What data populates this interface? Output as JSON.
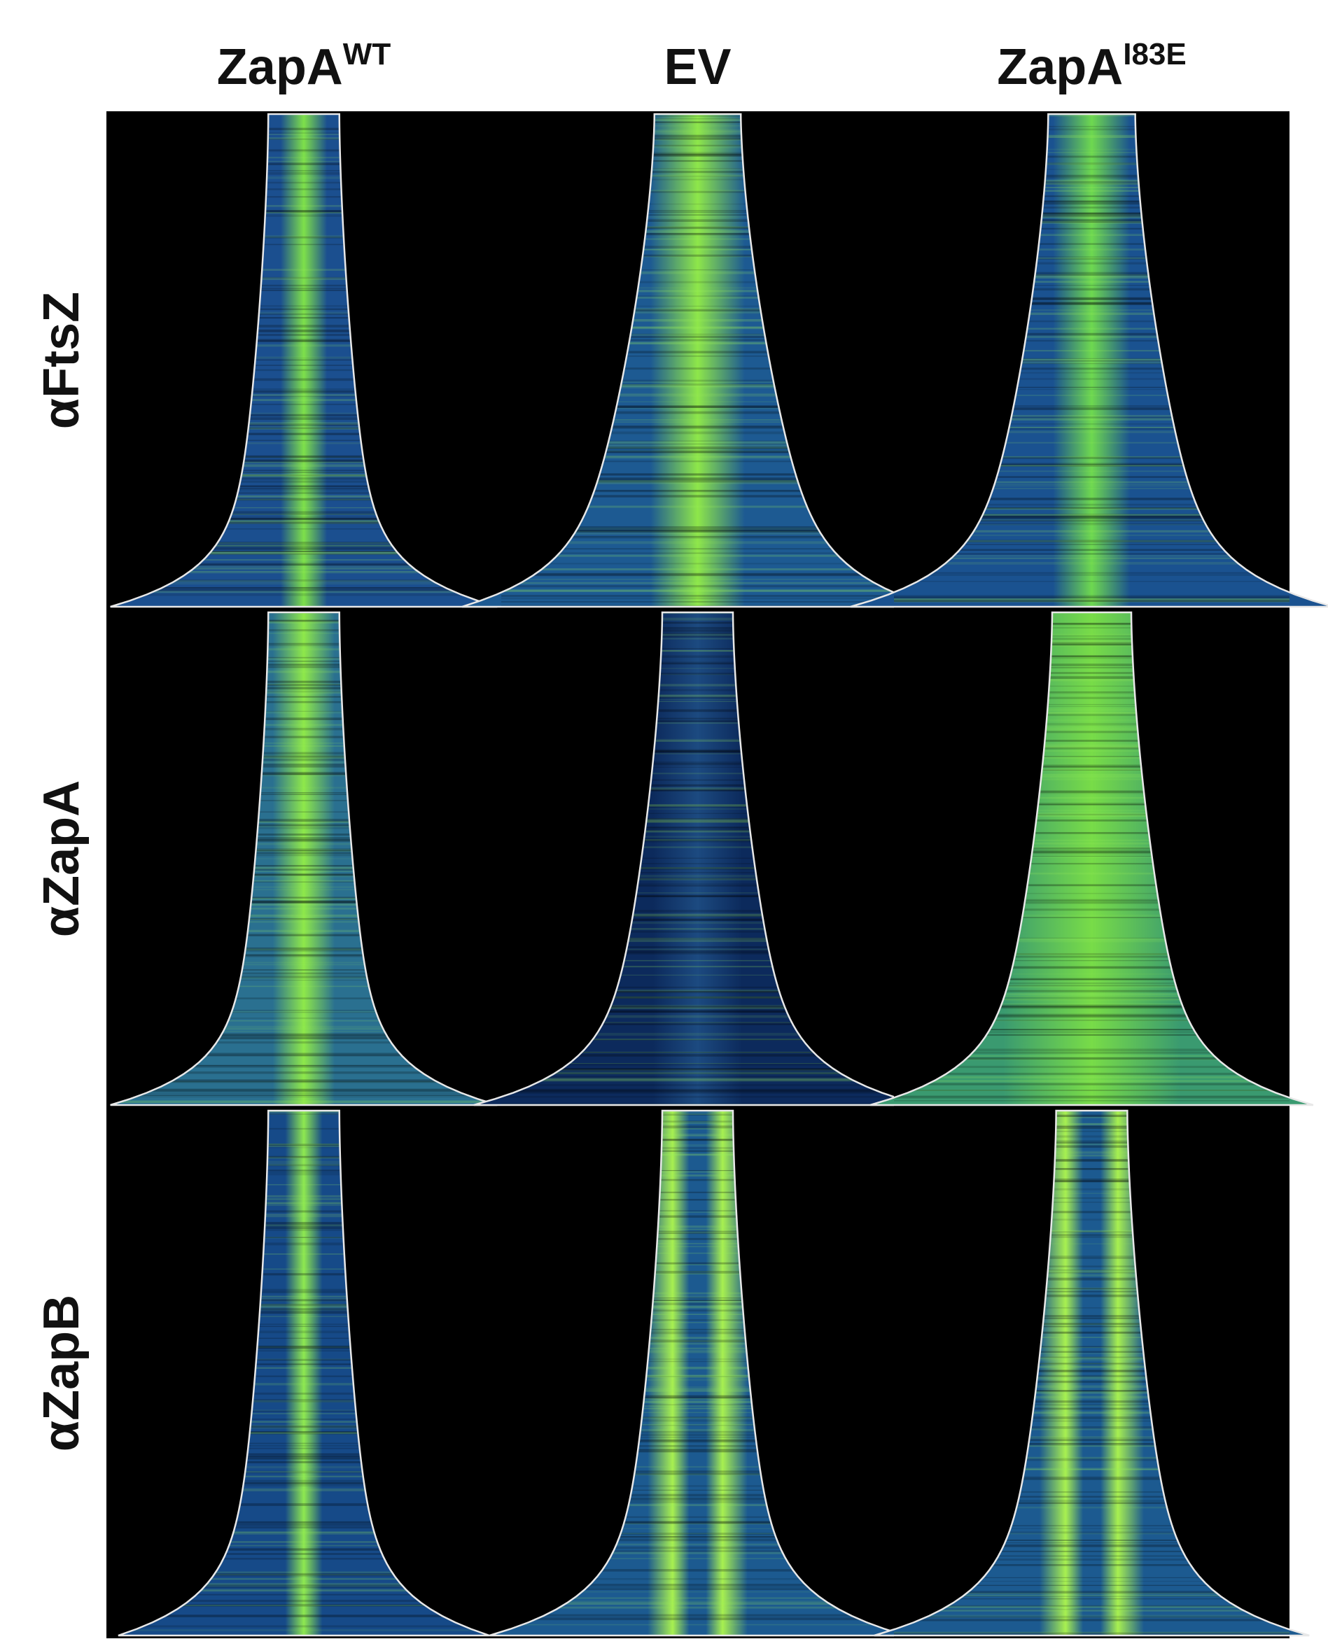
{
  "columns": [
    {
      "label": "ZapA",
      "superscript": "WT"
    },
    {
      "label": "EV"
    },
    {
      "label": "ZapA",
      "superscript": "I83E"
    }
  ],
  "rows": [
    {
      "label": "αFtsZ"
    },
    {
      "label": "αZapA"
    },
    {
      "label": "αZapB"
    }
  ]
}
